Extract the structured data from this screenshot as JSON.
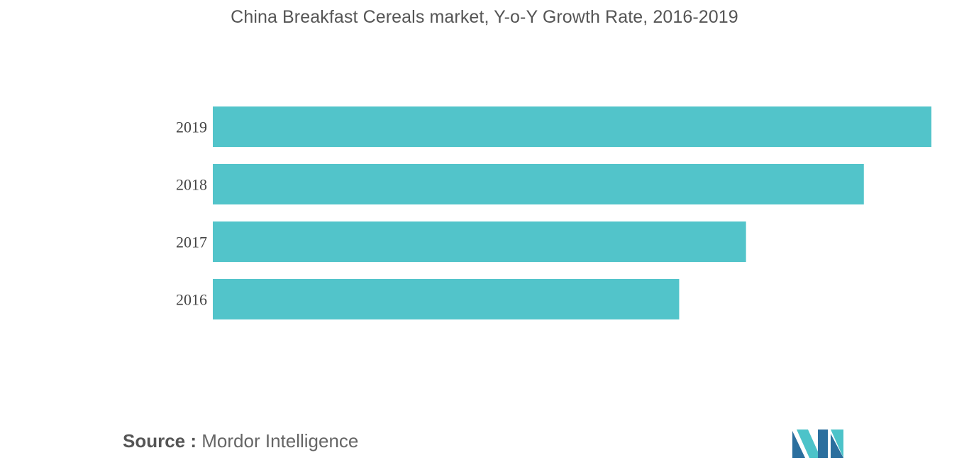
{
  "title": "China Breakfast Cereals market, Y-o-Y Growth Rate, 2016-2019",
  "source": {
    "prefix": "Source :",
    "name": "Mordor Intelligence"
  },
  "colors": {
    "bar": "#52c4ca",
    "logo_dark": "#2b6f9e",
    "logo_light": "#4cc3c9"
  },
  "logo_icon": "mordor-intelligence-logo-icon",
  "chart_data": {
    "type": "bar",
    "orientation": "horizontal",
    "title": "China Breakfast Cereals market, Y-o-Y Growth Rate, 2016-2019",
    "categories": [
      "2019",
      "2018",
      "2017",
      "2016"
    ],
    "values": [
      100,
      90.6,
      74.2,
      64.9
    ],
    "xlim": [
      0,
      100
    ],
    "xlabel": "",
    "ylabel": "",
    "grid": false,
    "legend": "none"
  }
}
